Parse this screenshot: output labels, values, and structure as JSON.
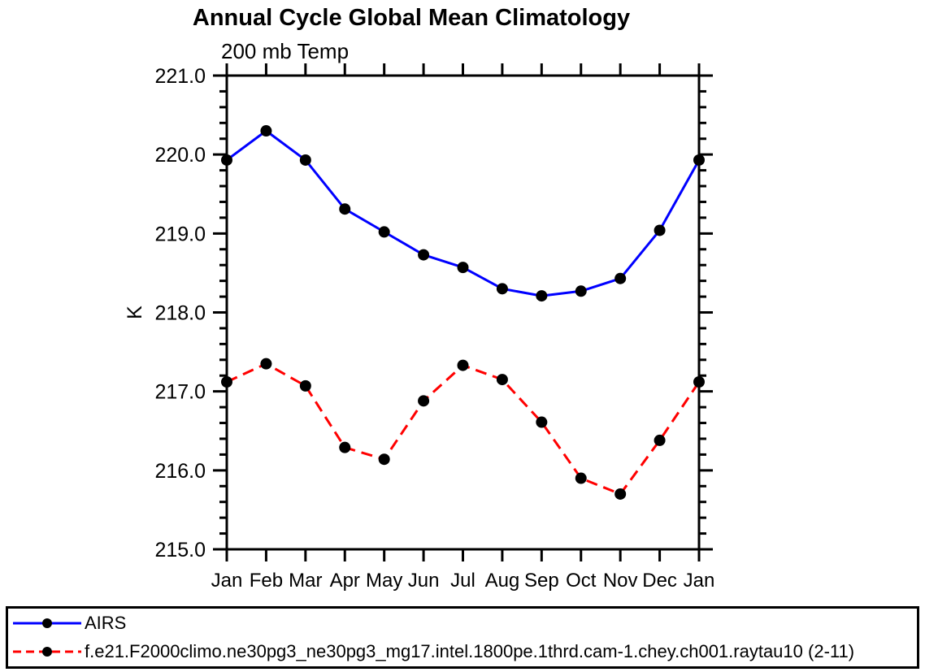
{
  "chart_data": {
    "type": "line",
    "title": "Annual Cycle Global Mean Climatology",
    "subtitle": "200 mb Temp",
    "ylabel": "K",
    "xlabel": "",
    "categories": [
      "Jan",
      "Feb",
      "Mar",
      "Apr",
      "May",
      "Jun",
      "Jul",
      "Aug",
      "Sep",
      "Oct",
      "Nov",
      "Dec",
      "Jan"
    ],
    "series": [
      {
        "name": "AIRS",
        "color": "#0000ff",
        "line_style": "solid",
        "marker": "circle",
        "values": [
          219.93,
          220.3,
          219.93,
          219.31,
          219.02,
          218.73,
          218.57,
          218.3,
          218.21,
          218.27,
          218.43,
          219.04,
          219.93
        ]
      },
      {
        "name": "f.e21.F2000climo.ne30pg3_ne30pg3_mg17.intel.1800pe.1thrd.cam-1.chey.ch001.raytau10 (2-11)",
        "color": "#ff0000",
        "line_style": "dashed",
        "marker": "circle",
        "values": [
          217.12,
          217.35,
          217.07,
          216.29,
          216.14,
          216.88,
          217.33,
          217.15,
          216.61,
          215.9,
          215.7,
          216.38,
          217.12
        ]
      }
    ],
    "ylim": [
      215.0,
      221.0
    ],
    "ytick_major": 1.0,
    "ytick_minor": 0.2,
    "ytick_format_decimals": 1,
    "marker_color": "#000000",
    "axis_color": "#000000",
    "grid": false,
    "legend_position": "bottom",
    "ticks_direction": "outward"
  }
}
